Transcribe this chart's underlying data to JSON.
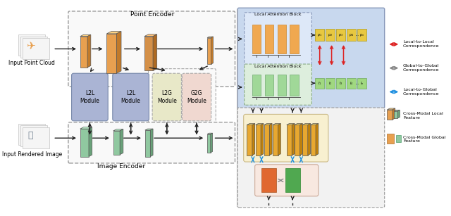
{
  "bg_color": "#ffffff",
  "left_panel": {
    "point_encoder_label": "Point Encoder",
    "image_encoder_label": "Image Encoder",
    "input_point_cloud_label": "Input Point Cloud",
    "input_rendered_label": "Input Rendered Image",
    "modules": [
      "L2L\nModule",
      "L2L\nModule",
      "L2G\nModule",
      "G2G\nModule"
    ],
    "module_colors": [
      "#aab4d4",
      "#aab4d4",
      "#e8e8c8",
      "#f0d8d0"
    ],
    "point_bar_color": "#e8a050",
    "image_bar_color": "#90c8a0"
  },
  "right_top_panel": {
    "bg_color": "#c8d8ee",
    "point_bar_color": "#f0a850",
    "image_bar_color": "#a8d8a0",
    "token_color_point": "#e8c840",
    "token_color_image": "#a8d890",
    "red_arrow_color": "#dd2222"
  },
  "right_bottom_panel": {
    "local_box_color": "#f8f0d0",
    "global_box_color": "#f8e8e0",
    "point_bar_color": "#e8a830",
    "orange_bar_color": "#e06830",
    "green_bar_color": "#50a850",
    "blue_arrow_color": "#2090e0",
    "gray_arrow_color": "#888888"
  },
  "legend": {
    "local_local_label": "Local-to-Local\nCorrespondence",
    "global_global_label": "Global-to-Global\nCorrespondence",
    "local_global_label": "Local-to-Global\nCorrespondence",
    "cross_local_label": "Cross-Modal Local\nFeature",
    "cross_global_label": "Cross-Modal Global\nFeature",
    "red_color": "#dd2222",
    "gray_color": "#888888",
    "blue_color": "#2090e0",
    "orange_color": "#e8a050",
    "green_color": "#90c8a0"
  }
}
